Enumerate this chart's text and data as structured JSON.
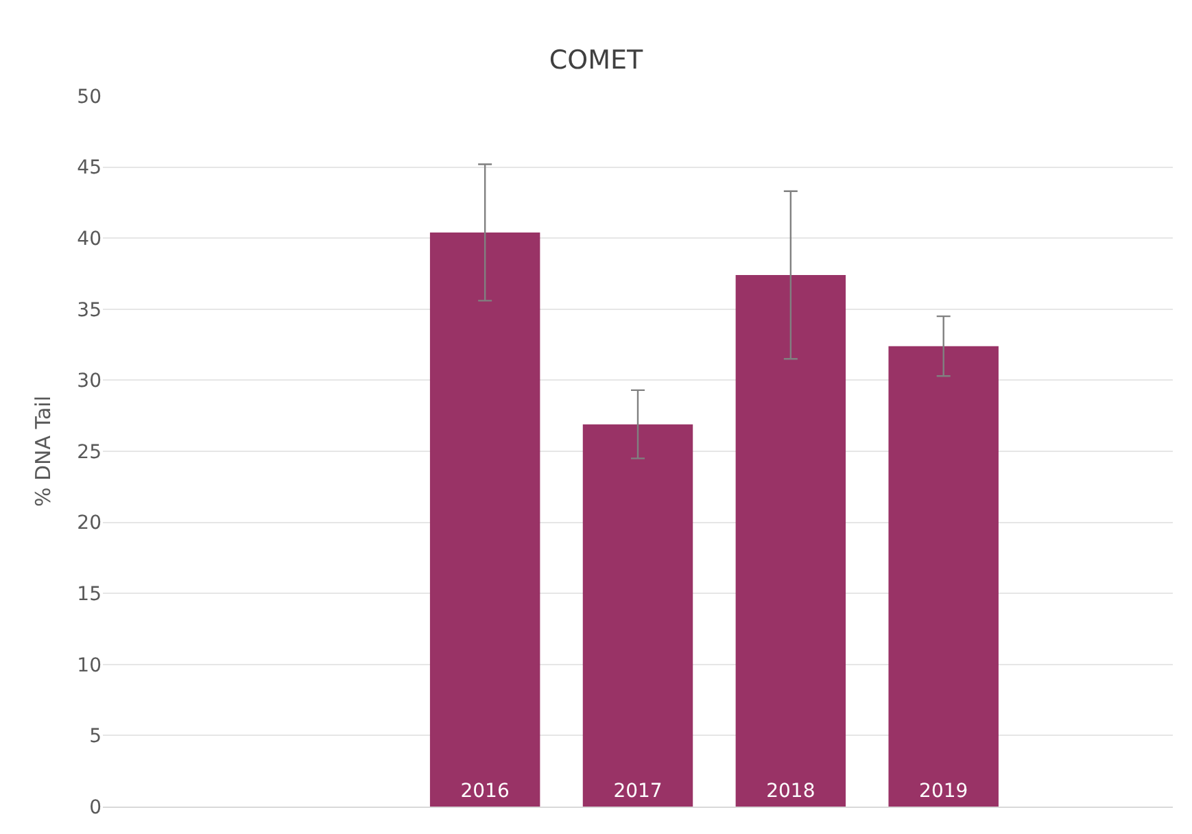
{
  "chart_data": {
    "type": "bar",
    "title": "COMET",
    "ylabel": "% DNA Tail",
    "categories": [
      null,
      null,
      "2016",
      "2017",
      "2018",
      "2019",
      null
    ],
    "values": [
      null,
      null,
      40.4,
      26.9,
      37.4,
      32.4,
      null
    ],
    "errors": [
      null,
      null,
      4.8,
      2.4,
      5.9,
      2.1,
      null
    ],
    "color": "#993366",
    "ylim": [
      0,
      50
    ],
    "yticks": [
      0,
      5,
      10,
      15,
      20,
      25,
      30,
      35,
      40,
      45,
      50
    ],
    "grid": "y"
  }
}
